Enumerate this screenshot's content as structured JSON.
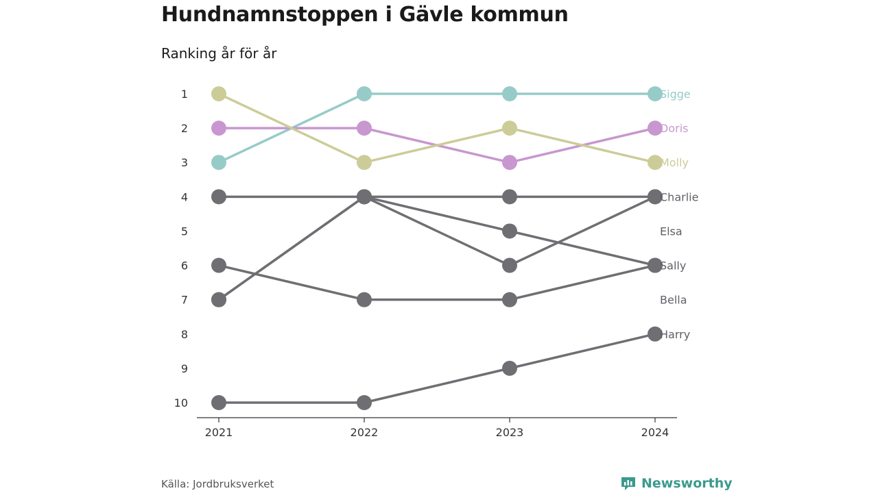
{
  "page": {
    "title": "Hundnamnstoppen i Gävle kommun",
    "subtitle": "Ranking år för år",
    "source": "Källa: Jordbruksverket",
    "brand": "Newsworthy",
    "brand_icon": "newsworthy-logo-icon",
    "brand_color": "#3a9a8e"
  },
  "chart_data": {
    "type": "line",
    "x": [
      "2021",
      "2022",
      "2023",
      "2024"
    ],
    "y_ticks": [
      "1",
      "2",
      "3",
      "4",
      "5",
      "6",
      "7",
      "8",
      "9",
      "10"
    ],
    "ylim": [
      1,
      10
    ],
    "y_inverted": true,
    "grid": false,
    "series": [
      {
        "name": "Sigge",
        "values": [
          3,
          1,
          1,
          1
        ],
        "color": "#96cbc8"
      },
      {
        "name": "Doris",
        "values": [
          2,
          2,
          3,
          2
        ],
        "color": "#c897cf"
      },
      {
        "name": "Molly",
        "values": [
          1,
          3,
          2,
          3
        ],
        "color": "#cccc99"
      },
      {
        "name": "Charlie",
        "values": [
          4,
          4,
          4,
          4
        ],
        "color": "#6e6e73"
      },
      {
        "name": "Elsa",
        "values": [
          7,
          4,
          6,
          4
        ],
        "color": "#6e6e73"
      },
      {
        "name": "Sally",
        "values": [
          7,
          4,
          5,
          6
        ],
        "color": "#6e6e73"
      },
      {
        "name": "Bella",
        "values": [
          6,
          7,
          7,
          6
        ],
        "color": "#6e6e73"
      },
      {
        "name": "Harry",
        "values": [
          10,
          10,
          9,
          8
        ],
        "color": "#6e6e73"
      }
    ]
  }
}
